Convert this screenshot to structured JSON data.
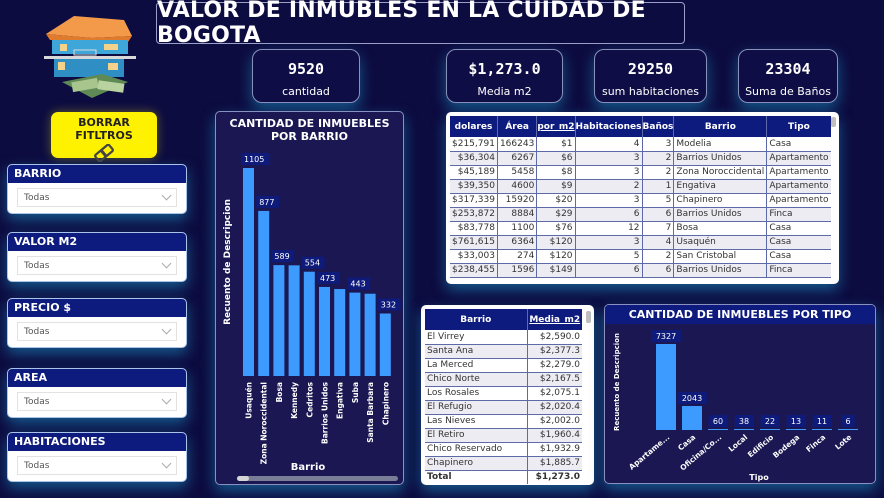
{
  "header": {
    "title": "VALOR DE INMUBLES EN LA CUIDAD DE BOGOTA",
    "logo": "house-money-logo"
  },
  "kpis": [
    {
      "value": "9520",
      "label": "cantidad"
    },
    {
      "value": "$1,273.0",
      "label": "Media  m2"
    },
    {
      "value": "29250",
      "label": "sum  habitaciones"
    },
    {
      "value": "23304",
      "label": "Suma de Baños"
    }
  ],
  "clear_button": {
    "label": "BORRAR FITLTROS",
    "icon": "eraser-icon"
  },
  "slicers": [
    {
      "title": "BARRIO",
      "value": "Todas"
    },
    {
      "title": "VALOR M2",
      "value": "Todas"
    },
    {
      "title": "PRECIO $",
      "value": "Todas"
    },
    {
      "title": "AREA",
      "value": "Todas"
    },
    {
      "title": "HABITACIONES",
      "value": "Todas"
    }
  ],
  "detail_table": {
    "columns": [
      "dolares",
      "Área",
      "por_m2",
      "Habitaciones",
      "Baños",
      "Barrio",
      "Tipo"
    ],
    "sort_column": "por_m2",
    "sort_direction": "ascending",
    "rows": [
      [
        "$215,791",
        "166243",
        "$1",
        "4",
        "3",
        "Modelia",
        "Casa"
      ],
      [
        "$36,304",
        "6267",
        "$6",
        "3",
        "2",
        "Barrios Unidos",
        "Apartamento"
      ],
      [
        "$45,189",
        "5458",
        "$8",
        "3",
        "2",
        "Zona Noroccidental",
        "Apartamento"
      ],
      [
        "$39,350",
        "4600",
        "$9",
        "2",
        "1",
        "Engativa",
        "Apartamento"
      ],
      [
        "$317,339",
        "15920",
        "$20",
        "3",
        "5",
        "Chapinero",
        "Apartamento"
      ],
      [
        "$253,872",
        "8884",
        "$29",
        "6",
        "6",
        "Barrios Unidos",
        "Finca"
      ],
      [
        "$83,778",
        "1100",
        "$76",
        "12",
        "7",
        "Bosa",
        "Casa"
      ],
      [
        "$761,615",
        "6364",
        "$120",
        "3",
        "4",
        "Usaquén",
        "Casa"
      ],
      [
        "$33,003",
        "274",
        "$120",
        "5",
        "2",
        "San Cristobal",
        "Casa"
      ],
      [
        "$238,455",
        "1596",
        "$149",
        "6",
        "6",
        "Barrios Unidos",
        "Finca"
      ]
    ]
  },
  "media_table": {
    "columns": [
      "Barrio",
      "Media_m2"
    ],
    "sort_column": "Media_m2",
    "sort_direction": "descending",
    "rows": [
      [
        "El Virrey",
        "$2,590.0"
      ],
      [
        "Santa Ana",
        "$2,377.3"
      ],
      [
        "La Merced",
        "$2,279.0"
      ],
      [
        "Chico Norte",
        "$2,167.5"
      ],
      [
        "Los Rosales",
        "$2,075.1"
      ],
      [
        "El Refugio",
        "$2,020.4"
      ],
      [
        "Las Nieves",
        "$2,002.0"
      ],
      [
        "El Retiro",
        "$1,960.4"
      ],
      [
        "Chico Reservado",
        "$1,932.9"
      ],
      [
        "Chapinero",
        "$1,885.7"
      ]
    ],
    "total": [
      "Total",
      "$1,273.0"
    ]
  },
  "chart_data": [
    {
      "type": "bar",
      "title": "CANTIDAD DE INMUEBLES POR BARRIO",
      "xlabel": "Barrio",
      "ylabel": "Recuento de Descripcion",
      "categories": [
        "Usaquén",
        "Zona Noroccidental",
        "Bosa",
        "Kennedy",
        "Cedritos",
        "Barrios Unidos",
        "Engativa",
        "Suba",
        "Santa Barbara",
        "Chapinero"
      ],
      "values": [
        1105,
        877,
        589,
        588,
        554,
        473,
        462,
        443,
        437,
        332
      ],
      "data_labels": [
        "1105",
        "877",
        "589",
        "",
        "554",
        "473",
        "",
        "443",
        "",
        "332"
      ],
      "ylim": [
        0,
        1105
      ],
      "grid": false,
      "color": "#3d9bff",
      "scrollbar": true
    },
    {
      "type": "bar",
      "title": "CANTIDAD DE INMUEBLES POR TIPO",
      "xlabel": "Tipo",
      "ylabel": "Recuento de Descripcion",
      "categories": [
        "Apartame...",
        "Casa",
        "Oficina/Co...",
        "Local",
        "Edificio",
        "Bodega",
        "Finca",
        "Lote"
      ],
      "values": [
        7327,
        2043,
        60,
        38,
        22,
        13,
        11,
        6
      ],
      "data_labels": [
        "7327",
        "2043",
        "60",
        "38",
        "22",
        "13",
        "11",
        "6"
      ],
      "ylim": [
        0,
        7327
      ],
      "grid": false,
      "color": "#3d9bff"
    }
  ]
}
